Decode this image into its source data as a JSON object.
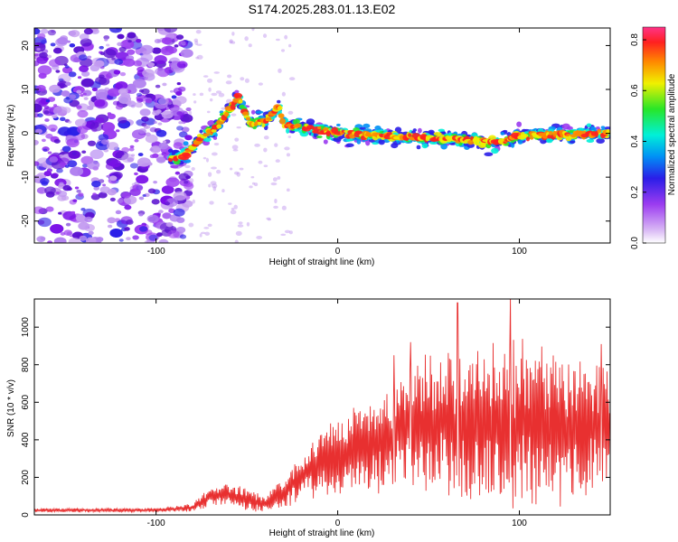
{
  "figure_title": "S174.2025.283.01.13.E02",
  "colors": {
    "snr_line": "#e83030",
    "speckle_dark": "#7a10e8",
    "speckle_light": "#c49cf0",
    "colormap": [
      "#ffffff",
      "#d9b8f5",
      "#9b3bf0",
      "#2a1ee8",
      "#0090f5",
      "#00f0d8",
      "#28e628",
      "#f0f000",
      "#ff8800",
      "#ff2020",
      "#ff3388"
    ]
  },
  "chart_data": [
    {
      "type": "heatmap",
      "title": "S174.2025.283.01.13.E02",
      "xlabel": "Height of straight line (km)",
      "ylabel": "Frequency (Hz)",
      "xlim": [
        -167,
        150
      ],
      "ylim": [
        -25,
        24
      ],
      "x_ticks": [
        -100,
        0,
        100
      ],
      "x_tick_labels": [
        "-100",
        "0",
        "100"
      ],
      "y_ticks": [
        -20,
        -10,
        0,
        10,
        20
      ],
      "y_tick_labels": [
        "-20",
        "-10",
        "0",
        "10",
        "20"
      ],
      "colorbar": {
        "label": "Normalized spectral amplitude",
        "range": [
          0,
          0.85
        ],
        "ticks": [
          0.0,
          0.2,
          0.4,
          0.6,
          0.8
        ],
        "tick_labels": [
          "0.0",
          "0.2",
          "0.4",
          "0.6",
          "0.8"
        ]
      },
      "ridge": [
        {
          "x": -85,
          "freq": -5.5
        },
        {
          "x": -75,
          "freq": -1
        },
        {
          "x": -65,
          "freq": 2
        },
        {
          "x": -55,
          "freq": 8.5
        },
        {
          "x": -48,
          "freq": 2
        },
        {
          "x": -40,
          "freq": 3
        },
        {
          "x": -32,
          "freq": 6
        },
        {
          "x": -30,
          "freq": 2
        },
        {
          "x": 0,
          "freq": 0
        },
        {
          "x": 90,
          "freq": -2
        },
        {
          "x": 100,
          "freq": -0.5
        },
        {
          "x": 150,
          "freq": 0
        }
      ]
    },
    {
      "type": "line",
      "xlabel": "Height of straight line (km)",
      "ylabel": "SNR (10 * v/v)",
      "xlim": [
        -167,
        150
      ],
      "ylim": [
        0,
        1150
      ],
      "x_ticks": [
        -100,
        0,
        100
      ],
      "x_tick_labels": [
        "-100",
        "0",
        "100"
      ],
      "y_ticks": [
        0,
        200,
        400,
        600,
        800,
        1000
      ],
      "y_tick_labels": [
        "0",
        "200",
        "400",
        "600",
        "800",
        "1000"
      ],
      "envelope": [
        {
          "x": -167,
          "mean": 25,
          "spread": 10
        },
        {
          "x": -100,
          "mean": 25,
          "spread": 10
        },
        {
          "x": -80,
          "mean": 40,
          "spread": 20
        },
        {
          "x": -70,
          "mean": 100,
          "spread": 50
        },
        {
          "x": -60,
          "mean": 110,
          "spread": 60
        },
        {
          "x": -50,
          "mean": 80,
          "spread": 60
        },
        {
          "x": -40,
          "mean": 60,
          "spread": 40
        },
        {
          "x": -30,
          "mean": 120,
          "spread": 80
        },
        {
          "x": -20,
          "mean": 200,
          "spread": 120
        },
        {
          "x": -10,
          "mean": 280,
          "spread": 160
        },
        {
          "x": 0,
          "mean": 320,
          "spread": 200
        },
        {
          "x": 10,
          "mean": 360,
          "spread": 220
        },
        {
          "x": 20,
          "mean": 370,
          "spread": 240
        },
        {
          "x": 30,
          "mean": 420,
          "spread": 280
        },
        {
          "x": 40,
          "mean": 480,
          "spread": 330
        },
        {
          "x": 60,
          "mean": 490,
          "spread": 370
        },
        {
          "x": 80,
          "mean": 480,
          "spread": 400
        },
        {
          "x": 95,
          "mean": 480,
          "spread": 420
        },
        {
          "x": 110,
          "mean": 470,
          "spread": 380
        },
        {
          "x": 130,
          "mean": 450,
          "spread": 340
        },
        {
          "x": 150,
          "mean": 460,
          "spread": 330
        }
      ],
      "peaks": [
        {
          "x": 31,
          "value": 850
        },
        {
          "x": 40,
          "value": 920
        },
        {
          "x": 66,
          "value": 1130
        },
        {
          "x": 95,
          "value": 1160
        },
        {
          "x": 145,
          "value": 910
        }
      ]
    }
  ]
}
